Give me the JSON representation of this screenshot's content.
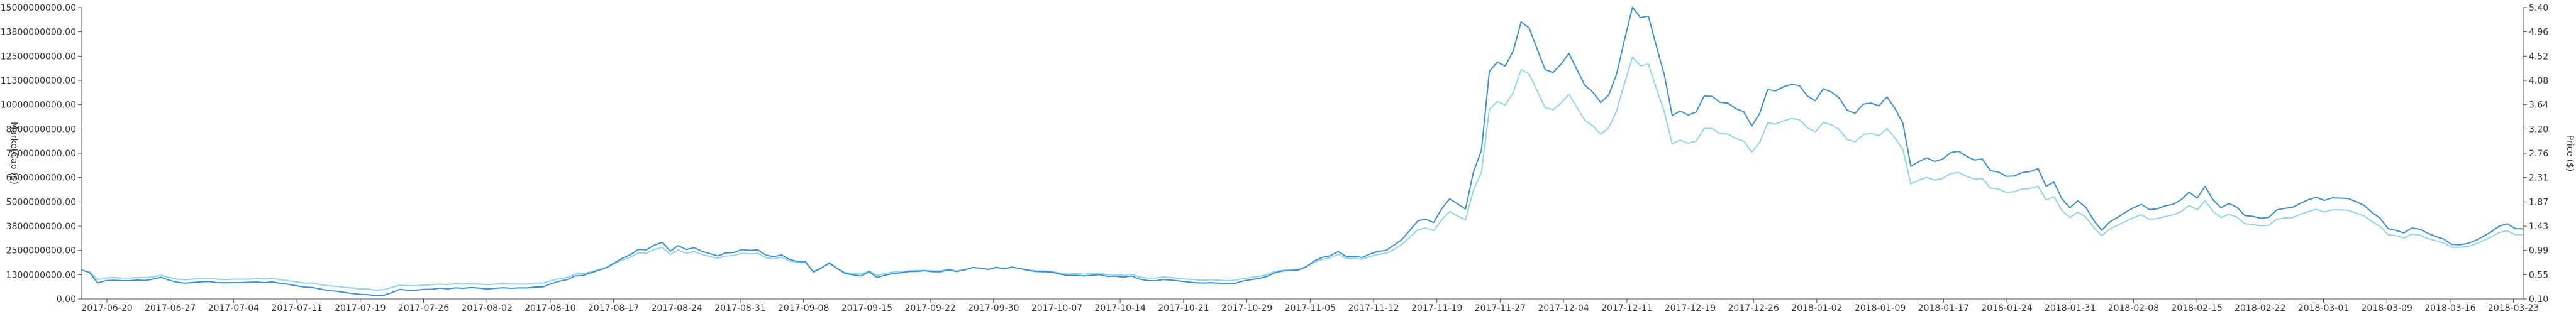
{
  "chart_data": {
    "type": "line",
    "title": "",
    "xlabel": "",
    "ylabel_left": "MarketCap ($)",
    "ylabel_right": "Price ($)",
    "x_tick_labels": [
      "2017-06-20",
      "2017-06-27",
      "2017-07-04",
      "2017-07-11",
      "2017-07-19",
      "2017-07-26",
      "2017-08-02",
      "2017-08-10",
      "2017-08-17",
      "2017-08-24",
      "2017-08-31",
      "2017-09-08",
      "2017-09-15",
      "2017-09-22",
      "2017-09-30",
      "2017-10-07",
      "2017-10-14",
      "2017-10-21",
      "2017-10-29",
      "2017-11-05",
      "2017-11-12",
      "2017-11-19",
      "2017-11-27",
      "2017-12-04",
      "2017-12-11",
      "2017-12-19",
      "2017-12-26",
      "2018-01-02",
      "2018-01-09",
      "2018-01-17",
      "2018-01-24",
      "2018-01-31",
      "2018-02-08",
      "2018-02-15",
      "2018-02-22",
      "2018-03-01",
      "2018-03-09",
      "2018-03-16",
      "2018-03-23"
    ],
    "y_left_ticks": [
      "0.00",
      "1300000000.00",
      "2500000000.00",
      "3800000000.00",
      "5000000000.00",
      "6300000000.00",
      "7500000000.00",
      "8800000000.00",
      "10000000000.00",
      "11300000000.00",
      "12500000000.00",
      "13800000000.00",
      "15000000000.00"
    ],
    "y_right_ticks": [
      "0.10",
      "0.55",
      "0.99",
      "1.43",
      "1.87",
      "2.31",
      "2.76",
      "3.20",
      "3.64",
      "4.08",
      "4.52",
      "4.96",
      "5.40"
    ],
    "y_left_range": [
      0,
      15000000000
    ],
    "y_right_range": [
      0.1,
      5.4
    ],
    "legend": "none",
    "grid": false,
    "series": [
      {
        "axis": "left",
        "color": "#3a8fd9",
        "values": [
          1.49,
          1.35,
          0.82,
          0.94,
          0.96,
          0.94,
          0.94,
          0.97,
          0.95,
          1.02,
          1.12,
          0.96,
          0.86,
          0.81,
          0.85,
          0.88,
          0.9,
          0.84,
          0.83,
          0.84,
          0.84,
          0.86,
          0.87,
          0.84,
          0.88,
          0.8,
          0.75,
          0.68,
          0.61,
          0.59,
          0.51,
          0.43,
          0.4,
          0.34,
          0.28,
          0.24,
          0.22,
          0.17,
          0.19,
          0.33,
          0.49,
          0.45,
          0.45,
          0.49,
          0.5,
          0.56,
          0.52,
          0.57,
          0.55,
          0.59,
          0.56,
          0.51,
          0.55,
          0.58,
          0.55,
          0.57,
          0.57,
          0.61,
          0.62,
          0.78,
          0.91,
          0.99,
          1.18,
          1.21,
          1.34,
          1.47,
          1.62,
          1.86,
          2.1,
          2.28,
          2.55,
          2.53,
          2.77,
          2.92,
          2.46,
          2.75,
          2.54,
          2.64,
          2.45,
          2.33,
          2.21,
          2.37,
          2.39,
          2.54,
          2.5,
          2.53,
          2.26,
          2.17,
          2.27,
          2.03,
          1.93,
          1.92,
          1.38,
          1.59,
          1.86,
          1.56,
          1.31,
          1.24,
          1.18,
          1.4,
          1.11,
          1.22,
          1.31,
          1.34,
          1.41,
          1.42,
          1.45,
          1.4,
          1.4,
          1.5,
          1.41,
          1.49,
          1.62,
          1.58,
          1.52,
          1.63,
          1.55,
          1.64,
          1.56,
          1.47,
          1.41,
          1.4,
          1.38,
          1.28,
          1.21,
          1.22,
          1.18,
          1.22,
          1.25,
          1.16,
          1.17,
          1.12,
          1.18,
          1.02,
          0.95,
          0.93,
          1.0,
          0.97,
          0.92,
          0.88,
          0.83,
          0.82,
          0.83,
          0.81,
          0.78,
          0.8,
          0.92,
          0.99,
          1.05,
          1.15,
          1.34,
          1.44,
          1.46,
          1.49,
          1.66,
          1.96,
          2.14,
          2.22,
          2.44,
          2.19,
          2.2,
          2.13,
          2.31,
          2.45,
          2.5,
          2.77,
          3.06,
          3.53,
          4.02,
          4.11,
          3.93,
          4.64,
          5.15,
          4.89,
          4.63,
          6.54,
          7.64,
          11.71,
          12.19,
          11.99,
          12.76,
          14.26,
          13.95,
          12.88,
          11.81,
          11.65,
          12.08,
          12.64,
          11.82,
          11.0,
          10.65,
          10.11,
          10.48,
          11.57,
          13.34,
          15.02,
          14.48,
          14.56,
          13.01,
          11.54,
          9.44,
          9.68,
          9.47,
          9.62,
          10.44,
          10.43,
          10.12,
          10.08,
          9.8,
          9.63,
          8.9,
          9.56,
          10.78,
          10.71,
          10.92,
          11.05,
          10.98,
          10.44,
          10.2,
          10.82,
          10.66,
          10.34,
          9.71,
          9.56,
          10.03,
          10.08,
          9.94,
          10.4,
          9.81,
          9.05,
          6.83,
          7.07,
          7.26,
          7.08,
          7.2,
          7.53,
          7.6,
          7.34,
          7.15,
          7.2,
          6.6,
          6.54,
          6.31,
          6.33,
          6.5,
          6.56,
          6.7,
          5.81,
          6.01,
          5.15,
          4.69,
          5.05,
          4.72,
          4.04,
          3.53,
          3.96,
          4.2,
          4.46,
          4.69,
          4.87,
          4.6,
          4.64,
          4.79,
          4.87,
          5.11,
          5.5,
          5.19,
          5.8,
          5.1,
          4.69,
          4.91,
          4.72,
          4.29,
          4.25,
          4.15,
          4.2,
          4.58,
          4.66,
          4.71,
          4.92,
          5.11,
          5.23,
          5.07,
          5.2,
          5.19,
          5.17,
          5.0,
          4.81,
          4.45,
          4.16,
          3.62,
          3.53,
          3.4,
          3.65,
          3.59,
          3.38,
          3.22,
          3.08,
          2.81,
          2.79,
          2.85,
          3.01,
          3.22,
          3.46,
          3.75,
          3.87,
          3.62,
          3.61
        ]
      },
      {
        "axis": "right",
        "color": "#8fd6e8",
        "values": [
          0.62,
          0.59,
          0.45,
          0.48,
          0.49,
          0.48,
          0.48,
          0.49,
          0.49,
          0.5,
          0.53,
          0.49,
          0.46,
          0.45,
          0.46,
          0.47,
          0.47,
          0.46,
          0.45,
          0.46,
          0.46,
          0.46,
          0.47,
          0.46,
          0.47,
          0.45,
          0.43,
          0.41,
          0.39,
          0.39,
          0.36,
          0.34,
          0.33,
          0.31,
          0.3,
          0.28,
          0.28,
          0.26,
          0.27,
          0.31,
          0.35,
          0.34,
          0.34,
          0.35,
          0.36,
          0.37,
          0.36,
          0.38,
          0.37,
          0.38,
          0.37,
          0.36,
          0.37,
          0.38,
          0.37,
          0.37,
          0.37,
          0.39,
          0.39,
          0.43,
          0.47,
          0.49,
          0.55,
          0.56,
          0.59,
          0.63,
          0.67,
          0.74,
          0.81,
          0.86,
          0.94,
          0.93,
          1.0,
          1.04,
          0.91,
          0.99,
          0.93,
          0.96,
          0.91,
          0.87,
          0.84,
          0.88,
          0.89,
          0.93,
          0.92,
          0.93,
          0.85,
          0.83,
          0.86,
          0.79,
          0.76,
          0.76,
          0.6,
          0.67,
          0.74,
          0.66,
          0.58,
          0.56,
          0.55,
          0.61,
          0.53,
          0.56,
          0.59,
          0.59,
          0.61,
          0.62,
          0.62,
          0.61,
          0.61,
          0.64,
          0.61,
          0.63,
          0.67,
          0.66,
          0.64,
          0.67,
          0.65,
          0.68,
          0.65,
          0.63,
          0.61,
          0.61,
          0.6,
          0.57,
          0.55,
          0.56,
          0.55,
          0.56,
          0.57,
          0.54,
          0.54,
          0.53,
          0.55,
          0.5,
          0.48,
          0.48,
          0.5,
          0.49,
          0.47,
          0.46,
          0.45,
          0.44,
          0.45,
          0.44,
          0.43,
          0.44,
          0.47,
          0.49,
          0.51,
          0.54,
          0.6,
          0.62,
          0.63,
          0.64,
          0.69,
          0.77,
          0.82,
          0.85,
          0.91,
          0.84,
          0.84,
          0.82,
          0.87,
          0.91,
          0.93,
          1.0,
          1.09,
          1.22,
          1.36,
          1.39,
          1.34,
          1.54,
          1.69,
          1.61,
          1.54,
          2.08,
          2.4,
          3.55,
          3.69,
          3.63,
          3.85,
          4.27,
          4.19,
          3.89,
          3.58,
          3.54,
          3.66,
          3.82,
          3.59,
          3.35,
          3.25,
          3.1,
          3.21,
          3.52,
          4.02,
          4.5,
          4.34,
          4.37,
          3.93,
          3.51,
          2.92,
          2.99,
          2.93,
          2.97,
          3.2,
          3.2,
          3.11,
          3.1,
          3.02,
          2.97,
          2.77,
          2.95,
          3.3,
          3.28,
          3.34,
          3.38,
          3.36,
          3.21,
          3.14,
          3.31,
          3.27,
          3.18,
          3.0,
          2.96,
          3.09,
          3.11,
          3.07,
          3.2,
          3.03,
          2.82,
          2.19,
          2.26,
          2.31,
          2.26,
          2.29,
          2.38,
          2.4,
          2.33,
          2.28,
          2.29,
          2.12,
          2.1,
          2.04,
          2.05,
          2.1,
          2.11,
          2.15,
          1.9,
          1.96,
          1.71,
          1.58,
          1.68,
          1.59,
          1.4,
          1.25,
          1.37,
          1.44,
          1.51,
          1.58,
          1.63,
          1.55,
          1.56,
          1.6,
          1.63,
          1.69,
          1.8,
          1.72,
          1.89,
          1.69,
          1.58,
          1.64,
          1.59,
          1.47,
          1.45,
          1.43,
          1.44,
          1.55,
          1.57,
          1.58,
          1.64,
          1.69,
          1.73,
          1.68,
          1.72,
          1.72,
          1.71,
          1.66,
          1.61,
          1.51,
          1.42,
          1.27,
          1.25,
          1.21,
          1.28,
          1.26,
          1.2,
          1.16,
          1.12,
          1.04,
          1.04,
          1.05,
          1.1,
          1.16,
          1.23,
          1.31,
          1.34,
          1.27,
          1.27
        ]
      }
    ]
  }
}
